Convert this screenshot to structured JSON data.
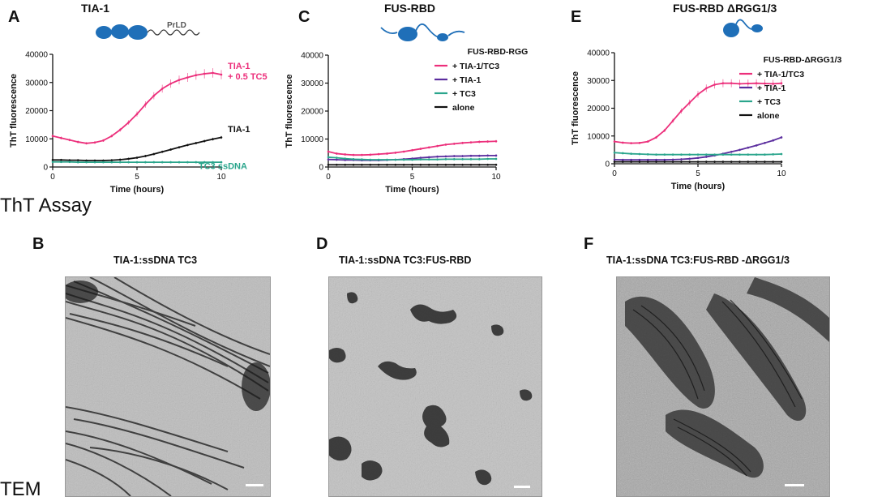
{
  "row_labels": {
    "assay": "ThT Assay",
    "tem": "TEM"
  },
  "panels": {
    "A": {
      "letter": "A",
      "title": "TIA-1",
      "schematic_label": "PrLD"
    },
    "C": {
      "letter": "C",
      "title": "FUS-RBD"
    },
    "E": {
      "letter": "E",
      "title": "FUS-RBD ΔRGG1/3"
    },
    "B": {
      "letter": "B",
      "title": "TIA-1:ssDNA TC3"
    },
    "D": {
      "letter": "D",
      "title": "TIA-1:ssDNA TC3:FUS-RBD"
    },
    "F": {
      "letter": "F",
      "title": "TIA-1:ssDNA TC3:FUS-RBD -ΔRGG1/3"
    }
  },
  "colors": {
    "pink": "#ec2f7b",
    "purple": "#5b2d9e",
    "teal": "#2aa58c",
    "black": "#111111",
    "mic_bg": "#b9b9b9",
    "mic_dark": "#262626"
  },
  "chart_data": [
    {
      "id": "A",
      "type": "line",
      "xlabel": "Time (hours)",
      "ylabel": "ThT fluorescence",
      "xlim": [
        0,
        10
      ],
      "ylim": [
        0,
        40000
      ],
      "xticks": [
        0,
        5,
        10
      ],
      "yticks": [
        0,
        10000,
        20000,
        30000,
        40000
      ],
      "x": [
        0,
        0.5,
        1,
        1.5,
        2,
        2.5,
        3,
        3.5,
        4,
        4.5,
        5,
        5.5,
        6,
        6.5,
        7,
        7.5,
        8,
        8.5,
        9,
        9.5,
        10
      ],
      "series": [
        {
          "name": "TIA-1 + 0.5 TC5",
          "label_lines": [
            "TIA-1",
            "+ 0.5 TC5"
          ],
          "color": "pink",
          "values": [
            11000,
            10300,
            9600,
            8900,
            8400,
            8700,
            9400,
            11000,
            13200,
            15800,
            18800,
            22200,
            25300,
            27800,
            29600,
            30900,
            31800,
            32600,
            33100,
            33400,
            32800
          ]
        },
        {
          "name": "TIA-1",
          "label_lines": [
            "TIA-1"
          ],
          "color": "black",
          "values": [
            2500,
            2500,
            2400,
            2400,
            2300,
            2300,
            2300,
            2400,
            2600,
            2900,
            3300,
            3900,
            4600,
            5400,
            6200,
            7000,
            7800,
            8500,
            9200,
            9900,
            10500
          ]
        },
        {
          "name": "TC3 ssDNA",
          "label_lines": [
            "TC3 ssDNA"
          ],
          "color": "teal",
          "values": [
            1800,
            1800,
            1800,
            1700,
            1700,
            1700,
            1700,
            1700,
            1700,
            1700,
            1700,
            1700,
            1700,
            1700,
            1700,
            1700,
            1700,
            1700,
            1700,
            1700,
            1700
          ]
        }
      ]
    },
    {
      "id": "C",
      "type": "line",
      "xlabel": "Time (hours)",
      "ylabel": "ThT fluorescence",
      "xlim": [
        0,
        10
      ],
      "ylim": [
        0,
        40000
      ],
      "xticks": [
        0,
        5,
        10
      ],
      "yticks": [
        0,
        10000,
        20000,
        30000,
        40000
      ],
      "legend_title": "FUS-RBD-RGG",
      "x": [
        0,
        0.5,
        1,
        1.5,
        2,
        2.5,
        3,
        3.5,
        4,
        4.5,
        5,
        5.5,
        6,
        6.5,
        7,
        7.5,
        8,
        8.5,
        9,
        9.5,
        10
      ],
      "series": [
        {
          "name": "+ TIA-1/TC3",
          "color": "pink",
          "values": [
            5500,
            4800,
            4500,
            4300,
            4300,
            4400,
            4600,
            4800,
            5100,
            5500,
            6000,
            6500,
            7000,
            7500,
            8000,
            8300,
            8600,
            8800,
            9000,
            9100,
            9200
          ]
        },
        {
          "name": "+ TIA-1",
          "color": "purple",
          "values": [
            2700,
            2600,
            2500,
            2500,
            2400,
            2400,
            2400,
            2500,
            2600,
            2800,
            3000,
            3300,
            3500,
            3700,
            3800,
            3900,
            3900,
            4000,
            4000,
            4100,
            4100
          ]
        },
        {
          "name": "+ TC3",
          "color": "teal",
          "values": [
            3500,
            3300,
            3000,
            2800,
            2700,
            2600,
            2600,
            2600,
            2600,
            2600,
            2600,
            2700,
            2700,
            2700,
            2800,
            2800,
            2800,
            2800,
            2800,
            2900,
            2900
          ]
        },
        {
          "name": "alone",
          "color": "black",
          "values": [
            800,
            800,
            800,
            800,
            800,
            800,
            800,
            800,
            800,
            800,
            800,
            800,
            800,
            800,
            800,
            800,
            800,
            800,
            800,
            800,
            800
          ]
        }
      ]
    },
    {
      "id": "E",
      "type": "line",
      "xlabel": "Time (hours)",
      "ylabel": "ThT fluorescence",
      "xlim": [
        0,
        10
      ],
      "ylim": [
        0,
        40000
      ],
      "xticks": [
        0,
        5,
        10
      ],
      "yticks": [
        0,
        10000,
        20000,
        30000,
        40000
      ],
      "legend_title": "FUS-RBD-ΔRGG1/3",
      "x": [
        0,
        0.5,
        1,
        1.5,
        2,
        2.5,
        3,
        3.5,
        4,
        4.5,
        5,
        5.5,
        6,
        6.5,
        7,
        7.5,
        8,
        8.5,
        9,
        9.5,
        10
      ],
      "series": [
        {
          "name": "+ TIA-1/TC3",
          "color": "pink",
          "values": [
            8000,
            7600,
            7400,
            7500,
            8000,
            9500,
            12000,
            15500,
            19000,
            22000,
            25000,
            27200,
            28500,
            29000,
            29000,
            28800,
            28900,
            29000,
            28900,
            28800,
            29000
          ]
        },
        {
          "name": "+ TIA-1",
          "color": "purple",
          "values": [
            1500,
            1400,
            1400,
            1400,
            1400,
            1400,
            1400,
            1500,
            1600,
            1800,
            2100,
            2500,
            3000,
            3600,
            4300,
            5000,
            5800,
            6600,
            7500,
            8400,
            9500
          ]
        },
        {
          "name": "+ TC3",
          "color": "teal",
          "values": [
            4000,
            3800,
            3600,
            3500,
            3400,
            3300,
            3300,
            3300,
            3300,
            3300,
            3300,
            3300,
            3300,
            3300,
            3300,
            3300,
            3300,
            3300,
            3300,
            3400,
            3500
          ]
        },
        {
          "name": "alone",
          "color": "black",
          "values": [
            700,
            700,
            700,
            700,
            700,
            700,
            700,
            700,
            700,
            700,
            700,
            700,
            700,
            700,
            700,
            700,
            700,
            700,
            700,
            700,
            700
          ]
        }
      ]
    }
  ]
}
